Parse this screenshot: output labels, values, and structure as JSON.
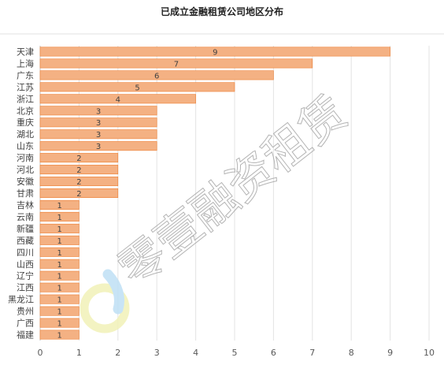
{
  "chart_data": {
    "type": "bar",
    "orientation": "horizontal",
    "title": "已成立金融租赁公司地区分布",
    "categories": [
      "天津",
      "上海",
      "广东",
      "江苏",
      "浙江",
      "北京",
      "重庆",
      "湖北",
      "山东",
      "河南",
      "河北",
      "安徽",
      "甘肃",
      "吉林",
      "云南",
      "新疆",
      "西藏",
      "四川",
      "山西",
      "辽宁",
      "江西",
      "黑龙江",
      "贵州",
      "广西",
      "福建"
    ],
    "values": [
      9,
      7,
      6,
      5,
      4,
      3,
      3,
      3,
      3,
      2,
      2,
      2,
      2,
      1,
      1,
      1,
      1,
      1,
      1,
      1,
      1,
      1,
      1,
      1,
      1
    ],
    "xlim": [
      0,
      10
    ],
    "x_ticks": [
      0,
      1,
      2,
      3,
      4,
      5,
      6,
      7,
      8,
      9,
      10
    ],
    "data_labels": true,
    "grid": "vertical",
    "legend": "none",
    "bar_color": "#F4B183",
    "bar_edge_color": "#ED7D31"
  },
  "watermark": {
    "text": "零壹融资租赁",
    "logo_colors": [
      "#F2F2B8",
      "#BFE0F5"
    ]
  }
}
